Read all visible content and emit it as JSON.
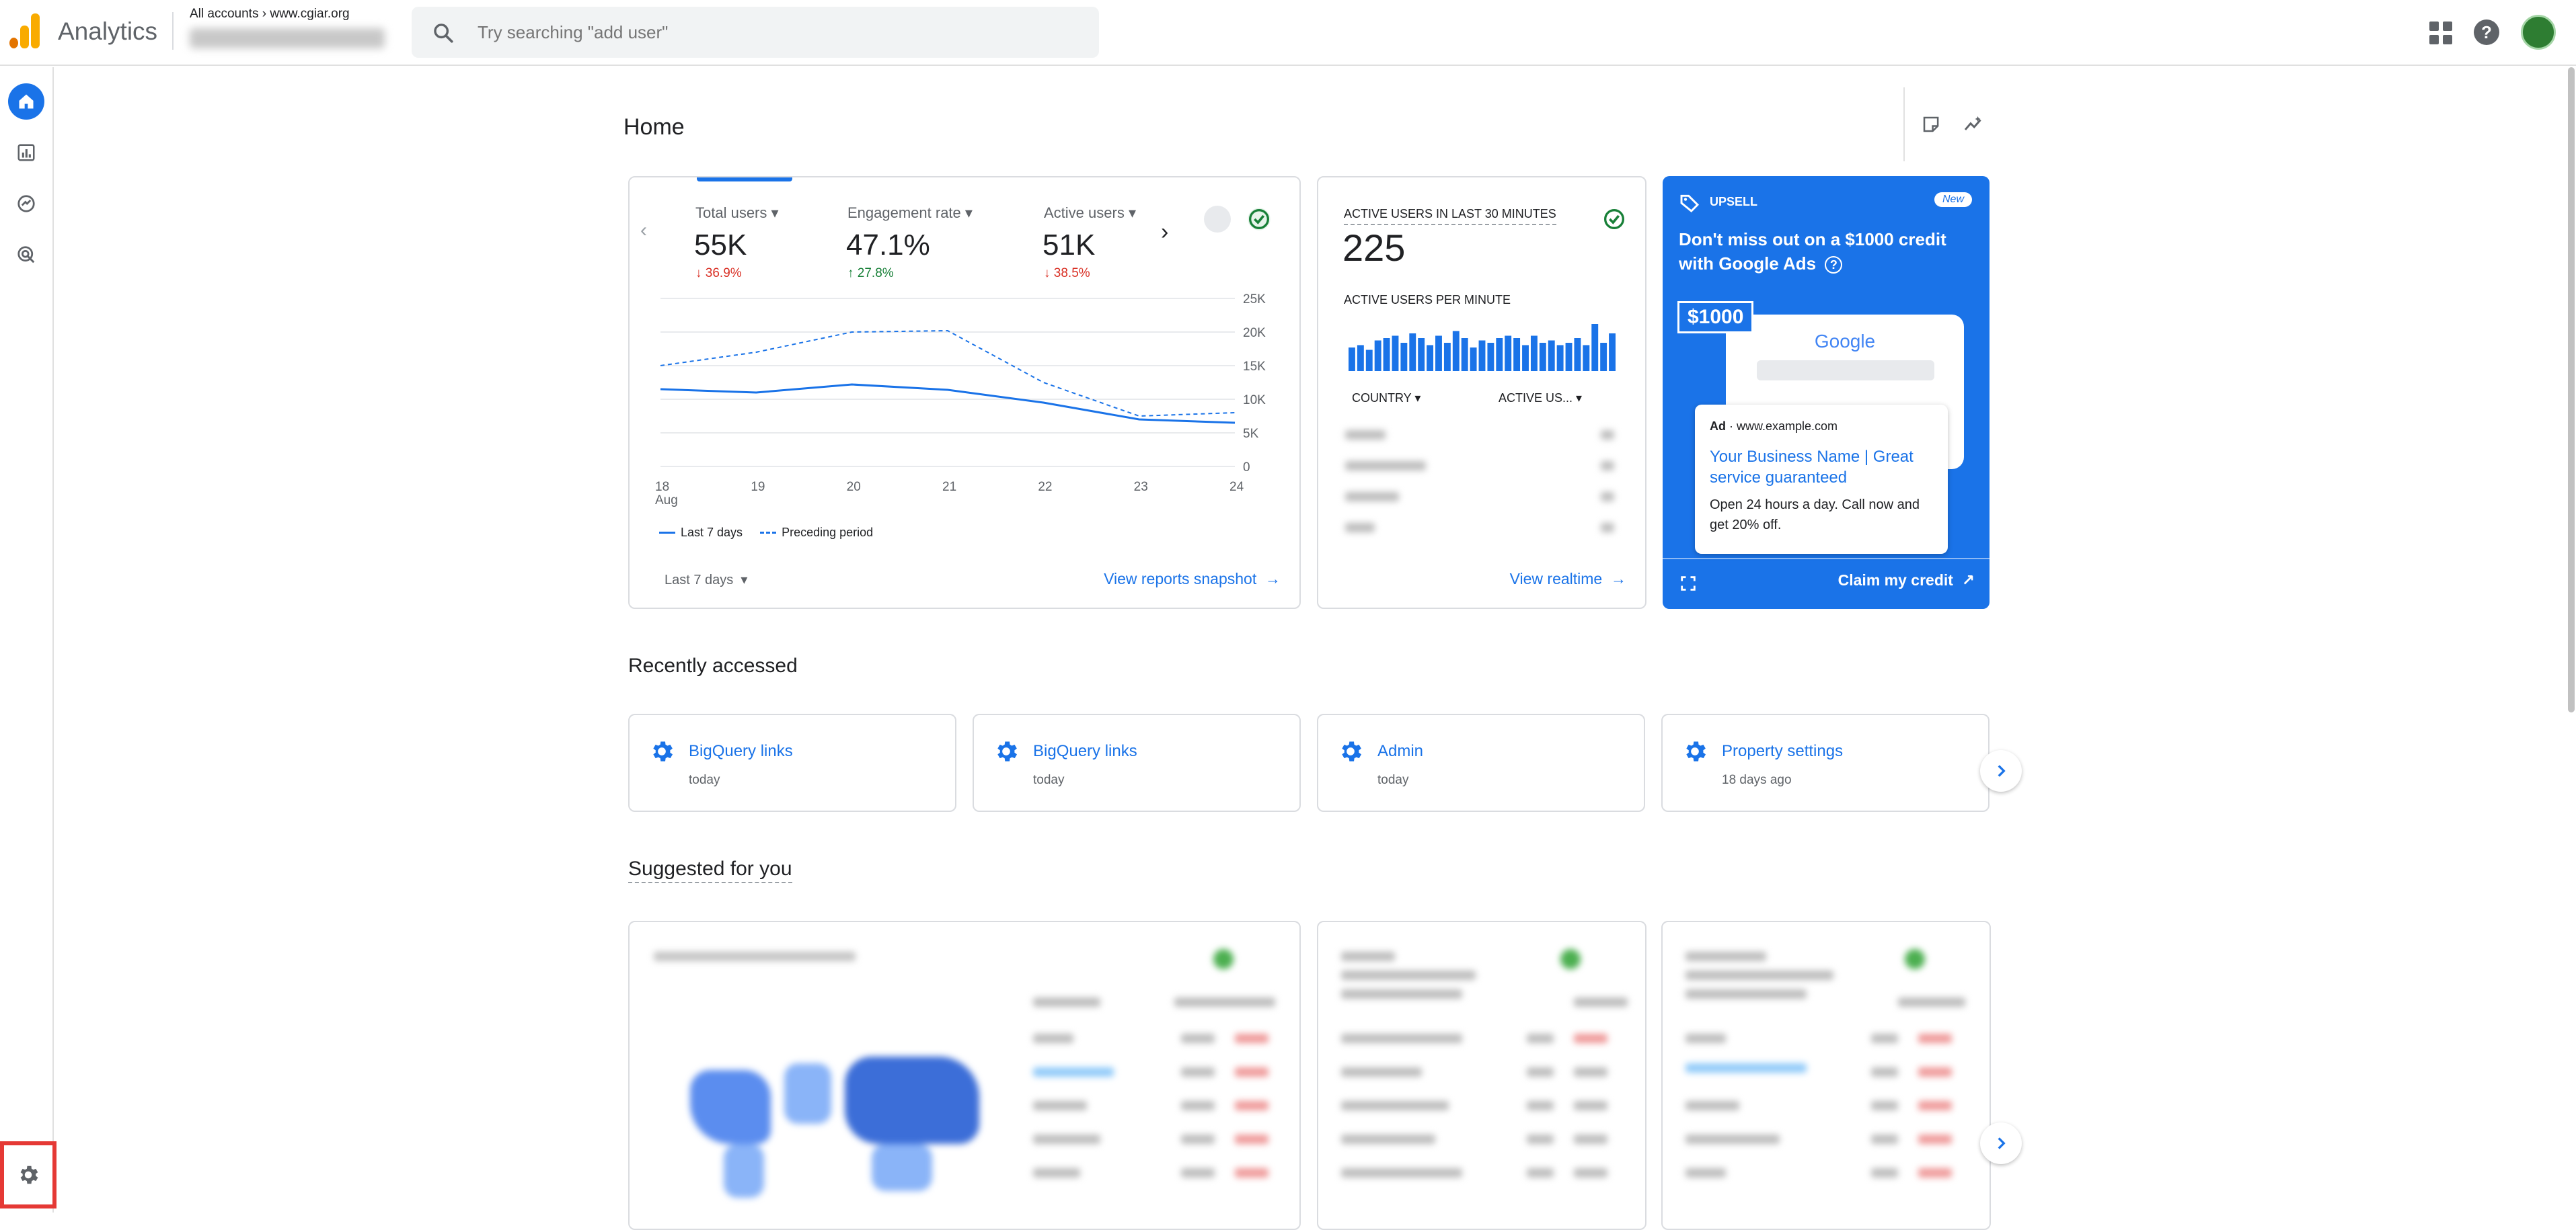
{
  "header": {
    "app_title": "Analytics",
    "breadcrumb_all": "All accounts",
    "breadcrumb_property": "www.cgiar.org",
    "search_placeholder": "Try searching \"add user\""
  },
  "page": {
    "title": "Home"
  },
  "overview": {
    "metrics": [
      {
        "label": "Total users",
        "value": "55K",
        "delta": "36.9%",
        "direction": "down"
      },
      {
        "label": "Engagement rate",
        "value": "47.1%",
        "delta": "27.8%",
        "direction": "up"
      },
      {
        "label": "Active users",
        "value": "51K",
        "delta": "38.5%",
        "direction": "down"
      }
    ],
    "legend_current": "Last 7 days",
    "legend_previous": "Preceding period",
    "date_range": "Last 7 days",
    "link": "View reports snapshot"
  },
  "realtime": {
    "title": "ACTIVE USERS IN LAST 30 MINUTES",
    "value": "225",
    "per_minute_label": "ACTIVE USERS PER MINUTE",
    "col_country": "COUNTRY",
    "col_active": "ACTIVE US...",
    "bars": [
      0.5,
      0.55,
      0.45,
      0.65,
      0.7,
      0.75,
      0.6,
      0.8,
      0.7,
      0.55,
      0.75,
      0.6,
      0.85,
      0.7,
      0.5,
      0.65,
      0.6,
      0.7,
      0.75,
      0.7,
      0.55,
      0.75,
      0.6,
      0.65,
      0.55,
      0.6,
      0.7,
      0.55,
      1.0,
      0.6,
      0.8
    ],
    "link": "View realtime"
  },
  "upsell": {
    "tag": "UPSELL",
    "badge": "New",
    "headline": "Don't miss out on a $1000 credit with Google Ads",
    "amount": "$1000",
    "google": "Google",
    "ad_prefix": "Ad",
    "ad_url": "www.example.com",
    "ad_title": "Your Business Name | Great service guaranteed",
    "ad_body": "Open 24 hours a day. Call now and get 20% off.",
    "cta": "Claim my credit"
  },
  "recent": {
    "title": "Recently accessed",
    "items": [
      {
        "title": "BigQuery links",
        "when": "today"
      },
      {
        "title": "BigQuery links",
        "when": "today"
      },
      {
        "title": "Admin",
        "when": "today"
      },
      {
        "title": "Property settings",
        "when": "18 days ago"
      }
    ]
  },
  "suggested": {
    "title": "Suggested for you"
  },
  "colors": {
    "accent": "#1a73e8",
    "down": "#d93025",
    "up": "#188038"
  },
  "chart_data": {
    "type": "line",
    "x": [
      "18 Aug",
      "19",
      "20",
      "21",
      "22",
      "23",
      "24"
    ],
    "ylim": [
      0,
      25000
    ],
    "yticks": [
      "25K",
      "20K",
      "15K",
      "10K",
      "5K",
      "0"
    ],
    "series": [
      {
        "name": "Last 7 days",
        "values": [
          11500,
          11000,
          12200,
          11400,
          9500,
          7000,
          6500
        ],
        "style": "solid"
      },
      {
        "name": "Preceding period",
        "values": [
          15000,
          17000,
          20000,
          20200,
          12500,
          7500,
          8000
        ],
        "style": "dashed"
      }
    ]
  }
}
